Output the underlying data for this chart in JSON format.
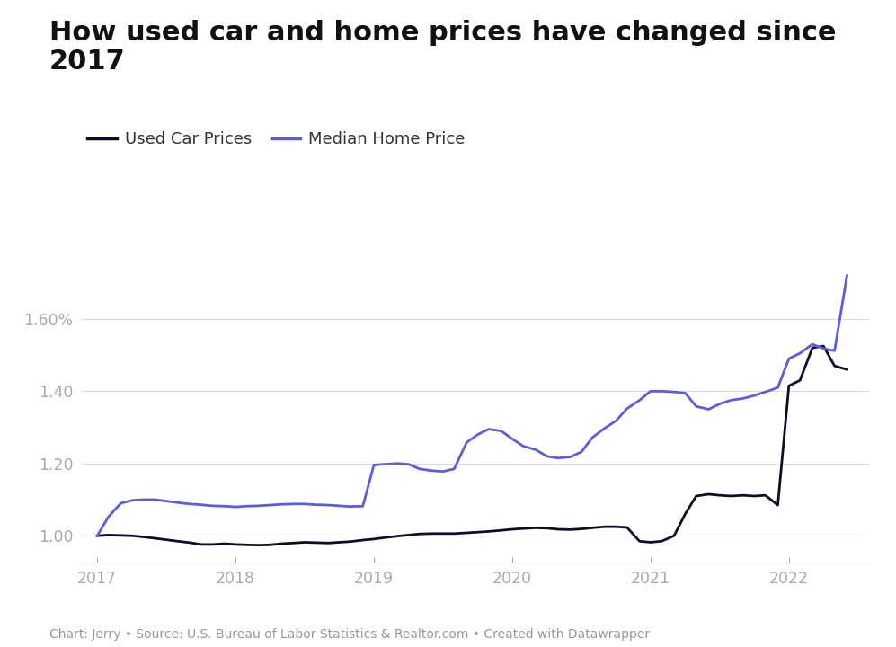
{
  "title": "How used car and home prices have changed since\n2017",
  "caption": "Chart: Jerry • Source: U.S. Bureau of Labor Statistics & Realtor.com • Created with Datawrapper",
  "car_label": "Used Car Prices",
  "home_label": "Median Home Price",
  "car_color": "#0d0d2b",
  "home_color": "#5c5ce0",
  "background_color": "#ffffff",
  "ylim": [
    0.925,
    1.82
  ],
  "yticks": [
    1.0,
    1.2,
    1.4,
    1.6
  ],
  "ytick_labels": [
    "1.00",
    "1.20",
    "1.40",
    "1.60%"
  ],
  "xlim": [
    2016.88,
    2022.58
  ],
  "xticks": [
    2017,
    2018,
    2019,
    2020,
    2021,
    2022
  ],
  "car_x": [
    2017.0,
    2017.08,
    2017.17,
    2017.25,
    2017.33,
    2017.42,
    2017.5,
    2017.58,
    2017.67,
    2017.75,
    2017.83,
    2017.92,
    2018.0,
    2018.08,
    2018.17,
    2018.25,
    2018.33,
    2018.42,
    2018.5,
    2018.58,
    2018.67,
    2018.75,
    2018.83,
    2018.92,
    2019.0,
    2019.08,
    2019.17,
    2019.25,
    2019.33,
    2019.42,
    2019.5,
    2019.58,
    2019.67,
    2019.75,
    2019.83,
    2019.92,
    2020.0,
    2020.08,
    2020.17,
    2020.25,
    2020.33,
    2020.42,
    2020.5,
    2020.58,
    2020.67,
    2020.75,
    2020.83,
    2020.92,
    2021.0,
    2021.08,
    2021.17,
    2021.25,
    2021.33,
    2021.42,
    2021.5,
    2021.58,
    2021.67,
    2021.75,
    2021.83,
    2021.92,
    2022.0,
    2022.08,
    2022.17,
    2022.25,
    2022.33,
    2022.42
  ],
  "car_y": [
    1.0,
    1.002,
    1.001,
    1.0,
    0.997,
    0.993,
    0.989,
    0.985,
    0.981,
    0.976,
    0.976,
    0.978,
    0.976,
    0.975,
    0.974,
    0.975,
    0.978,
    0.98,
    0.982,
    0.981,
    0.98,
    0.982,
    0.984,
    0.988,
    0.991,
    0.995,
    0.999,
    1.002,
    1.005,
    1.006,
    1.006,
    1.006,
    1.008,
    1.01,
    1.012,
    1.015,
    1.018,
    1.02,
    1.022,
    1.021,
    1.018,
    1.017,
    1.019,
    1.022,
    1.025,
    1.025,
    1.023,
    0.985,
    0.982,
    0.985,
    1.0,
    1.06,
    1.11,
    1.115,
    1.112,
    1.11,
    1.112,
    1.11,
    1.112,
    1.085,
    1.415,
    1.43,
    1.52,
    1.525,
    1.47,
    1.46
  ],
  "home_x": [
    2017.0,
    2017.08,
    2017.17,
    2017.25,
    2017.33,
    2017.42,
    2017.5,
    2017.58,
    2017.67,
    2017.75,
    2017.83,
    2017.92,
    2018.0,
    2018.08,
    2018.17,
    2018.25,
    2018.33,
    2018.42,
    2018.5,
    2018.58,
    2018.67,
    2018.75,
    2018.83,
    2018.92,
    2019.0,
    2019.08,
    2019.17,
    2019.25,
    2019.33,
    2019.42,
    2019.5,
    2019.58,
    2019.67,
    2019.75,
    2019.83,
    2019.92,
    2020.0,
    2020.08,
    2020.17,
    2020.25,
    2020.33,
    2020.42,
    2020.5,
    2020.58,
    2020.67,
    2020.75,
    2020.83,
    2020.92,
    2021.0,
    2021.08,
    2021.17,
    2021.25,
    2021.33,
    2021.42,
    2021.5,
    2021.58,
    2021.67,
    2021.75,
    2021.83,
    2021.92,
    2022.0,
    2022.08,
    2022.17,
    2022.25,
    2022.33,
    2022.42
  ],
  "home_y": [
    1.0,
    1.052,
    1.09,
    1.098,
    1.1,
    1.1,
    1.096,
    1.092,
    1.088,
    1.086,
    1.083,
    1.082,
    1.08,
    1.082,
    1.083,
    1.085,
    1.087,
    1.088,
    1.088,
    1.086,
    1.085,
    1.083,
    1.081,
    1.082,
    1.196,
    1.198,
    1.2,
    1.198,
    1.185,
    1.18,
    1.178,
    1.185,
    1.258,
    1.28,
    1.295,
    1.29,
    1.268,
    1.248,
    1.238,
    1.22,
    1.215,
    1.218,
    1.232,
    1.272,
    1.298,
    1.318,
    1.352,
    1.375,
    1.4,
    1.4,
    1.398,
    1.395,
    1.358,
    1.35,
    1.365,
    1.375,
    1.38,
    1.388,
    1.398,
    1.41,
    1.49,
    1.505,
    1.53,
    1.518,
    1.512,
    1.72
  ]
}
